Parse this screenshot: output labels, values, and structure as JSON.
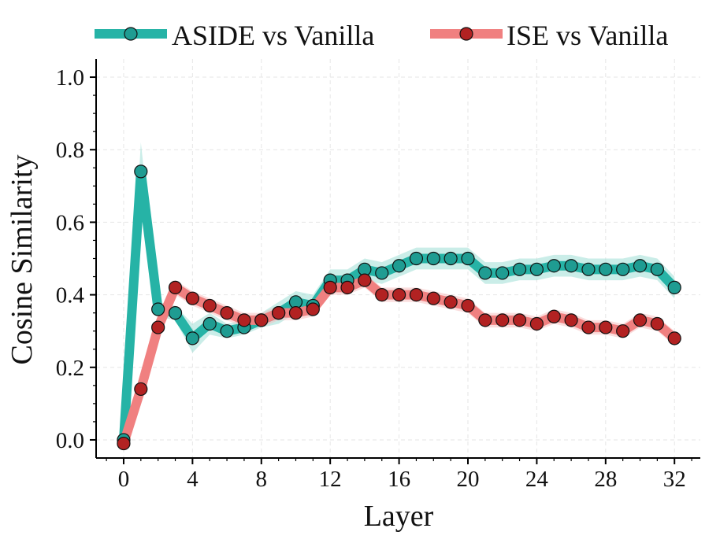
{
  "chart_data": {
    "type": "line",
    "title": "",
    "xlabel": "Layer",
    "ylabel": "Cosine Similarity",
    "xlim": [
      -1.6,
      33.5
    ],
    "ylim": [
      -0.05,
      1.05
    ],
    "xticks": [
      0,
      4,
      8,
      12,
      16,
      20,
      24,
      28,
      32
    ],
    "yticks": [
      0.0,
      0.2,
      0.4,
      0.6,
      0.8,
      1.0
    ],
    "xtick_labels": [
      "0",
      "4",
      "8",
      "12",
      "16",
      "20",
      "24",
      "28",
      "32"
    ],
    "ytick_labels": [
      "0.0",
      "0.2",
      "0.4",
      "0.6",
      "0.8",
      "1.0"
    ],
    "grid": true,
    "legend_position": "top",
    "x": [
      0,
      1,
      2,
      3,
      4,
      5,
      6,
      7,
      8,
      9,
      10,
      11,
      12,
      13,
      14,
      15,
      16,
      17,
      18,
      19,
      20,
      21,
      22,
      23,
      24,
      25,
      26,
      27,
      28,
      29,
      30,
      31,
      32
    ],
    "series": [
      {
        "name": "ASIDE vs Vanilla",
        "line_color": "#26b3a6",
        "marker_color": "#1f9c92",
        "band_color": "#9fded6",
        "values": [
          0.0,
          0.74,
          0.36,
          0.35,
          0.28,
          0.32,
          0.3,
          0.31,
          0.33,
          0.35,
          0.38,
          0.37,
          0.44,
          0.44,
          0.47,
          0.46,
          0.48,
          0.5,
          0.5,
          0.5,
          0.5,
          0.46,
          0.46,
          0.47,
          0.47,
          0.48,
          0.48,
          0.47,
          0.47,
          0.47,
          0.48,
          0.47,
          0.42
        ],
        "band": [
          0.0,
          0.08,
          0.02,
          0.02,
          0.04,
          0.03,
          0.02,
          0.02,
          0.02,
          0.03,
          0.03,
          0.03,
          0.03,
          0.03,
          0.03,
          0.03,
          0.03,
          0.03,
          0.03,
          0.03,
          0.03,
          0.03,
          0.03,
          0.03,
          0.03,
          0.03,
          0.03,
          0.03,
          0.03,
          0.03,
          0.03,
          0.03,
          0.03
        ]
      },
      {
        "name": "ISE vs Vanilla",
        "line_color": "#f08080",
        "marker_color": "#b22222",
        "band_color": "#f6bcbc",
        "values": [
          -0.01,
          0.14,
          0.31,
          0.42,
          0.39,
          0.37,
          0.35,
          0.33,
          0.33,
          0.35,
          0.35,
          0.36,
          0.42,
          0.42,
          0.44,
          0.4,
          0.4,
          0.4,
          0.39,
          0.38,
          0.37,
          0.33,
          0.33,
          0.33,
          0.32,
          0.34,
          0.33,
          0.31,
          0.31,
          0.3,
          0.33,
          0.32,
          0.28
        ],
        "band": [
          0.0,
          0.01,
          0.02,
          0.02,
          0.02,
          0.02,
          0.02,
          0.02,
          0.02,
          0.02,
          0.02,
          0.02,
          0.02,
          0.02,
          0.02,
          0.02,
          0.02,
          0.02,
          0.02,
          0.02,
          0.02,
          0.02,
          0.02,
          0.02,
          0.02,
          0.02,
          0.02,
          0.02,
          0.02,
          0.02,
          0.02,
          0.02,
          0.02
        ]
      }
    ]
  }
}
